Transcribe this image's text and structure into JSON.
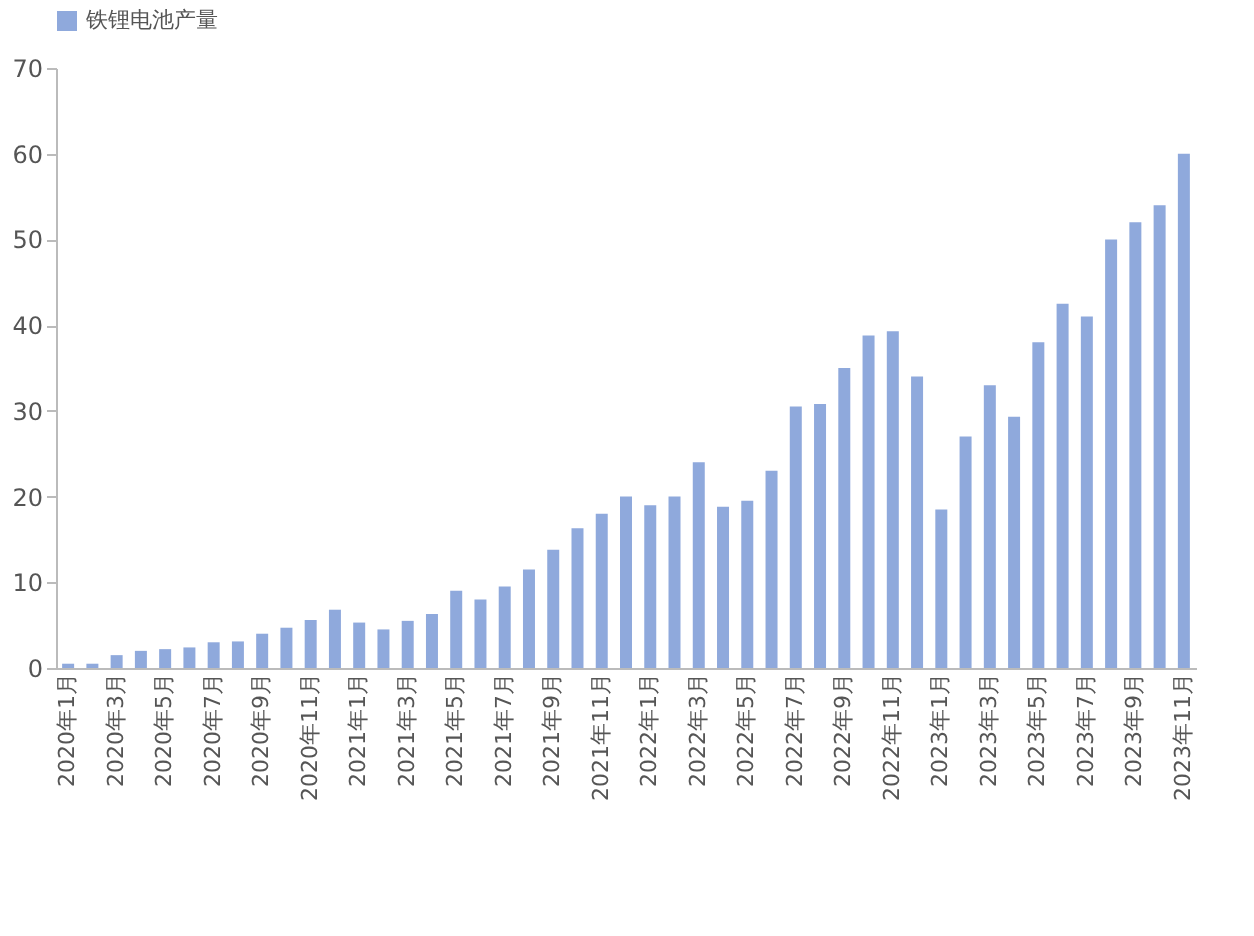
{
  "chart_data": {
    "type": "bar",
    "categories": [
      "2020年1月",
      null,
      "2020年3月",
      null,
      "2020年5月",
      null,
      "2020年7月",
      null,
      "2020年9月",
      null,
      "2020年11月",
      null,
      "2021年1月",
      null,
      "2021年3月",
      null,
      "2021年5月",
      null,
      "2021年7月",
      null,
      "2021年9月",
      null,
      "2021年11月",
      null,
      "2022年1月",
      null,
      "2022年3月",
      null,
      "2022年5月",
      null,
      "2022年7月",
      null,
      "2022年9月",
      null,
      "2022年11月",
      null,
      "2023年1月",
      null,
      "2023年3月",
      null,
      "2023年5月",
      null,
      "2023年7月",
      null,
      "2023年9月",
      null,
      "2023年11月"
    ],
    "series": [
      {
        "name": "铁锂电池产量",
        "color": "#8fa9dc",
        "values": [
          0.5,
          0.5,
          1.5,
          2,
          2.2,
          2.4,
          3,
          3.1,
          4,
          4.7,
          5.6,
          6.8,
          5.3,
          4.5,
          5.5,
          6.3,
          9,
          8,
          9.5,
          11.5,
          13.8,
          16.3,
          18,
          20,
          19,
          20,
          24,
          18.8,
          19.5,
          23,
          30.5,
          30.8,
          35,
          38.8,
          39.3,
          34,
          18.5,
          27,
          33,
          29.3,
          38,
          42.5,
          41,
          50,
          52,
          54,
          60
        ]
      }
    ],
    "ylim": [
      0,
      70
    ],
    "yticks": [
      0,
      10,
      20,
      30,
      40,
      50,
      60,
      70
    ],
    "grid": false,
    "legend": "top"
  }
}
